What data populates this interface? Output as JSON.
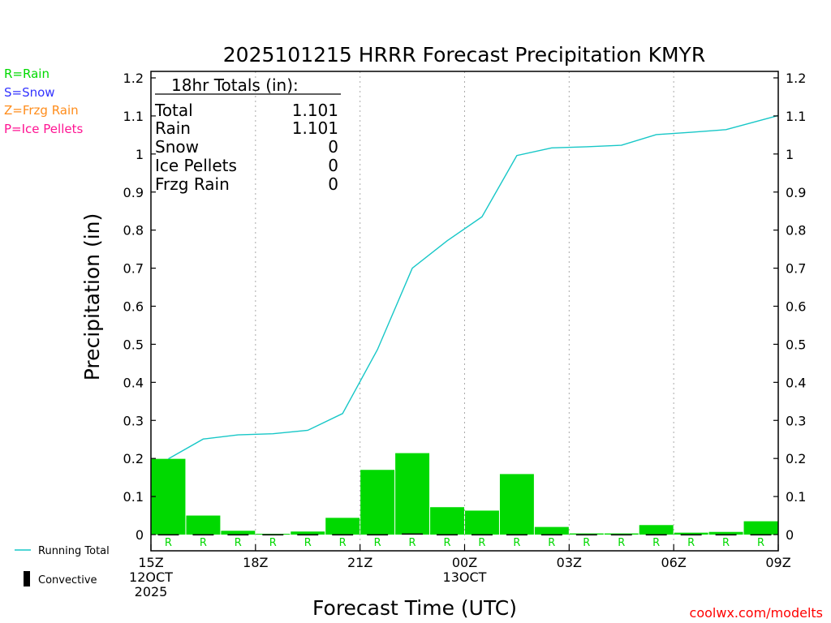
{
  "colors": {
    "rain": "#00d900",
    "snow": "#3333ff",
    "frzg": "#ff8c1a",
    "ice": "#ff1493",
    "running_total": "#17c7c7",
    "convective": "#000000",
    "grid": "#aaaaaa",
    "text": "#000000"
  },
  "precip_legend": [
    {
      "label": "R=Rain",
      "color_key": "rain"
    },
    {
      "label": "S=Snow",
      "color_key": "snow"
    },
    {
      "label": "Z=Frzg Rain",
      "color_key": "frzg"
    },
    {
      "label": "P=Ice Pellets",
      "color_key": "ice"
    }
  ],
  "series_legend": {
    "running_total": "Running Total",
    "convective": "Convective"
  },
  "totals_box": {
    "title": "18hr Totals (in):",
    "rows": [
      {
        "label": "Total",
        "value": "1.101"
      },
      {
        "label": "Rain",
        "value": "1.101"
      },
      {
        "label": "Snow",
        "value": "0"
      },
      {
        "label": "Ice Pellets",
        "value": "0"
      },
      {
        "label": "Frzg Rain",
        "value": "0"
      }
    ]
  },
  "credit": "coolwx.com/modelts",
  "chart_data": {
    "type": "bar",
    "title": "2025101215 HRRR Forecast Precipitation KMYR",
    "xlabel": "Forecast Time (UTC)",
    "ylabel": "Precipitation (in)",
    "ylim": [
      0,
      1.2
    ],
    "yticks": [
      0,
      0.1,
      0.2,
      0.3,
      0.4,
      0.5,
      0.6,
      0.7,
      0.8,
      0.9,
      1,
      1.1,
      1.2
    ],
    "ytick_labels": [
      "0",
      "0.1",
      "0.2",
      "0.3",
      "0.4",
      "0.5",
      "0.6",
      "0.7",
      "0.8",
      "0.9",
      "1",
      "1.1",
      "1.2"
    ],
    "xlim_hours": [
      0,
      18
    ],
    "xticks": [
      {
        "hour": 0,
        "lines": [
          "15Z",
          "12OCT",
          "2025"
        ]
      },
      {
        "hour": 3,
        "lines": [
          "18Z"
        ]
      },
      {
        "hour": 6,
        "lines": [
          "21Z"
        ]
      },
      {
        "hour": 9,
        "lines": [
          "00Z",
          "13OCT"
        ]
      },
      {
        "hour": 12,
        "lines": [
          "03Z"
        ]
      },
      {
        "hour": 15,
        "lines": [
          "06Z"
        ]
      },
      {
        "hour": 18,
        "lines": [
          "09Z"
        ]
      }
    ],
    "grid_hours": [
      3,
      6,
      9,
      12,
      15
    ],
    "hours": [
      1,
      2,
      3,
      4,
      5,
      6,
      7,
      8,
      9,
      10,
      11,
      12,
      13,
      14,
      15,
      16,
      17,
      18
    ],
    "hourly_precip": [
      0.199,
      0.05,
      0.01,
      0.002,
      0.008,
      0.044,
      0.17,
      0.214,
      0.072,
      0.063,
      0.159,
      0.02,
      0.003,
      0.003,
      0.025,
      0.005,
      0.007,
      0.035
    ],
    "precip_type": [
      "R",
      "R",
      "R",
      "R",
      "R",
      "R",
      "R",
      "R",
      "R",
      "R",
      "R",
      "R",
      "R",
      "R",
      "R",
      "R",
      "R",
      "R"
    ],
    "running_total": [
      0.199,
      0.251,
      0.262,
      0.265,
      0.274,
      0.318,
      0.486,
      0.7,
      0.772,
      0.835,
      0.996,
      1.016,
      1.019,
      1.023,
      1.051,
      1.057,
      1.064,
      1.101
    ],
    "convective": [
      0.001,
      0.001,
      0.001,
      0.001,
      0.001,
      0.001,
      0.001,
      0.003,
      0.001,
      0.001,
      0.001,
      0.001,
      0.001,
      0.001,
      0.001,
      0.001,
      0.001,
      0.001
    ]
  }
}
